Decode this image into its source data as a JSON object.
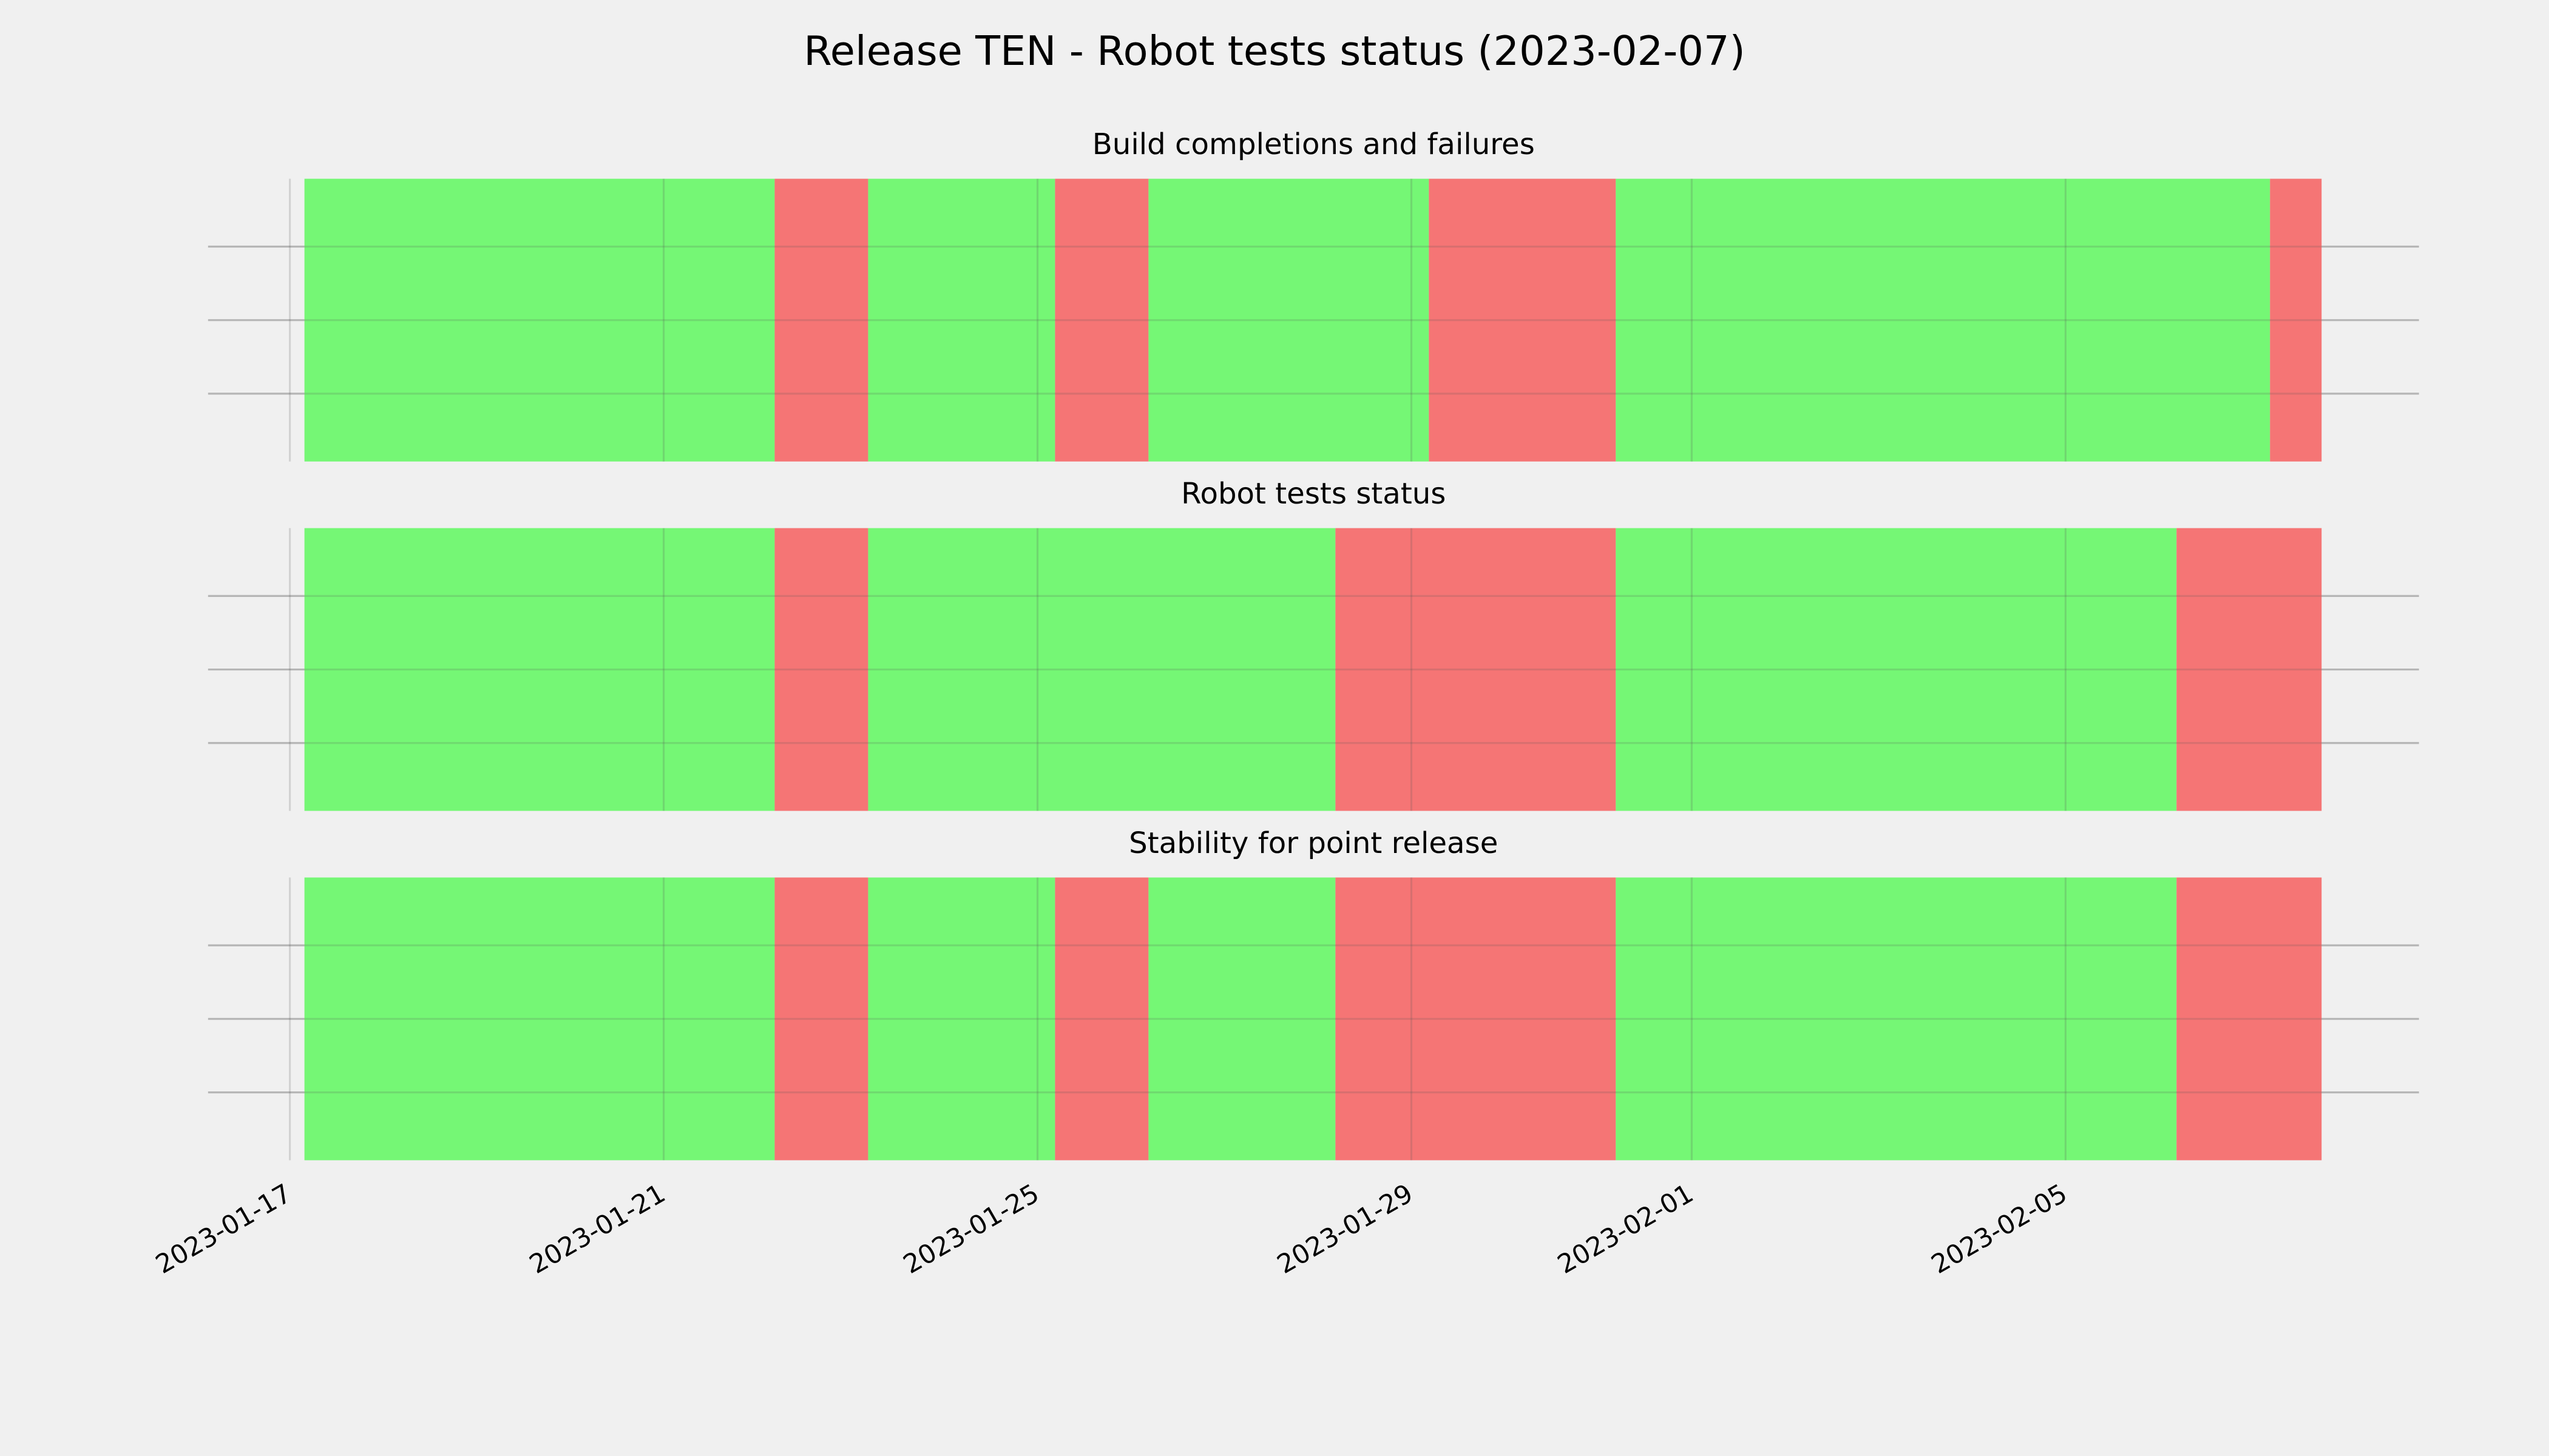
{
  "chart_data": [
    {
      "type": "spans",
      "suptitle": "Release TEN - Robot tests status (2023-02-07)",
      "title": "Build completions and failures",
      "xlim": [
        "2023-01-16T03:00",
        "2023-02-08T18:45"
      ],
      "xticks": [
        "2023-01-17",
        "2023-01-21",
        "2023-01-25",
        "2023-01-29",
        "2023-02-01",
        "2023-02-05"
      ],
      "grid": true,
      "segments": [
        {
          "start": "2023-01-17T03:45",
          "end": "2023-01-22T04:30",
          "color": "#75f775"
        },
        {
          "start": "2023-01-22T04:30",
          "end": "2023-01-23T04:30",
          "color": "#f57575"
        },
        {
          "start": "2023-01-23T04:30",
          "end": "2023-01-25T04:30",
          "color": "#75f775"
        },
        {
          "start": "2023-01-25T04:30",
          "end": "2023-01-26T04:30",
          "color": "#f57575"
        },
        {
          "start": "2023-01-26T04:30",
          "end": "2023-01-29T04:30",
          "color": "#75f775"
        },
        {
          "start": "2023-01-29T04:30",
          "end": "2023-01-31T04:30",
          "color": "#f57575"
        },
        {
          "start": "2023-01-31T04:30",
          "end": "2023-02-07T04:30",
          "color": "#75f775"
        },
        {
          "start": "2023-02-07T04:30",
          "end": "2023-02-07T17:45",
          "color": "#f57575"
        }
      ]
    },
    {
      "type": "spans",
      "title": "Robot tests status",
      "xlim": [
        "2023-01-16T03:00",
        "2023-02-08T18:45"
      ],
      "grid": true,
      "segments": [
        {
          "start": "2023-01-17T03:45",
          "end": "2023-01-22T04:30",
          "color": "#75f775"
        },
        {
          "start": "2023-01-22T04:30",
          "end": "2023-01-23T04:30",
          "color": "#f57575"
        },
        {
          "start": "2023-01-23T04:30",
          "end": "2023-01-28T04:30",
          "color": "#75f775"
        },
        {
          "start": "2023-01-28T04:30",
          "end": "2023-01-31T04:30",
          "color": "#f57575"
        },
        {
          "start": "2023-01-31T04:30",
          "end": "2023-02-06T04:30",
          "color": "#75f775"
        },
        {
          "start": "2023-02-06T04:30",
          "end": "2023-02-07T17:45",
          "color": "#f57575"
        }
      ]
    },
    {
      "type": "spans",
      "title": "Stability for point release",
      "xlim": [
        "2023-01-16T03:00",
        "2023-02-08T18:45"
      ],
      "grid": true,
      "segments": [
        {
          "start": "2023-01-17T03:45",
          "end": "2023-01-22T04:30",
          "color": "#75f775"
        },
        {
          "start": "2023-01-22T04:30",
          "end": "2023-01-23T04:30",
          "color": "#f57575"
        },
        {
          "start": "2023-01-23T04:30",
          "end": "2023-01-25T04:30",
          "color": "#75f775"
        },
        {
          "start": "2023-01-25T04:30",
          "end": "2023-01-26T04:30",
          "color": "#f57575"
        },
        {
          "start": "2023-01-26T04:30",
          "end": "2023-01-28T04:30",
          "color": "#75f775"
        },
        {
          "start": "2023-01-28T04:30",
          "end": "2023-01-31T04:30",
          "color": "#f57575"
        },
        {
          "start": "2023-01-31T04:30",
          "end": "2023-02-06T04:30",
          "color": "#75f775"
        },
        {
          "start": "2023-02-06T04:30",
          "end": "2023-02-07T17:45",
          "color": "#f57575"
        }
      ]
    }
  ]
}
